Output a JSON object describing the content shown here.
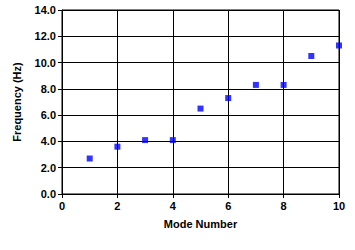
{
  "chart_data": {
    "type": "scatter",
    "x_label": "Mode Number",
    "y_label": "Frequency (Hz)",
    "x": [
      1,
      2,
      3,
      4,
      5,
      6,
      7,
      8,
      9,
      10
    ],
    "values": [
      2.7,
      3.6,
      4.1,
      4.1,
      6.5,
      7.3,
      8.3,
      8.3,
      10.5,
      11.3
    ],
    "color": "#0000ff",
    "marker": "square",
    "xlim": [
      0,
      10
    ],
    "xticks": [
      0,
      2,
      4,
      6,
      8,
      10
    ],
    "ylim": [
      0,
      14
    ],
    "yticks": [
      {
        "value": 0,
        "label": "0.0"
      },
      {
        "value": 2,
        "label": "2.0"
      },
      {
        "value": 4,
        "label": "4.0"
      },
      {
        "value": 6,
        "label": "6.0"
      },
      {
        "value": 8,
        "label": "8.0"
      },
      {
        "value": 10,
        "label": "10.0"
      },
      {
        "value": 12,
        "label": "12.0"
      },
      {
        "value": 14,
        "label": "14.0"
      }
    ],
    "grid": true
  }
}
